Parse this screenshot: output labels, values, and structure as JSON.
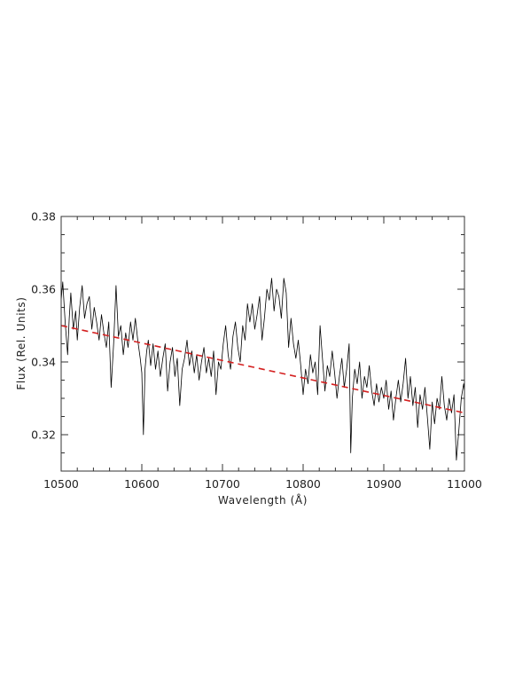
{
  "chart_data": {
    "type": "line",
    "title": "",
    "xlabel": "Wavelength (Å)",
    "ylabel": "Flux (Rel. Units)",
    "xlim": [
      10500,
      11000
    ],
    "ylim": [
      0.31,
      0.38
    ],
    "x_ticks": [
      10500,
      10600,
      10700,
      10800,
      10900,
      11000
    ],
    "x_tick_labels": [
      "10500",
      "10600",
      "10700",
      "10800",
      "10900",
      "11000"
    ],
    "y_ticks": [
      0.32,
      0.34,
      0.36,
      0.38
    ],
    "y_tick_labels": [
      "0.32",
      "0.34",
      "0.36",
      "0.38"
    ],
    "grid": false,
    "legend": "none",
    "series": [
      {
        "style": "solid",
        "color": "#000000",
        "x": [
          10500,
          10502,
          10505,
          10508,
          10510,
          10512,
          10515,
          10518,
          10520,
          10523,
          10526,
          10529,
          10532,
          10535,
          10538,
          10541,
          10544,
          10547,
          10550,
          10553,
          10556,
          10559,
          10562,
          10565,
          10568,
          10571,
          10574,
          10577,
          10580,
          10583,
          10586,
          10589,
          10592,
          10595,
          10598,
          10600,
          10602,
          10604,
          10606,
          10608,
          10611,
          10614,
          10617,
          10620,
          10623,
          10626,
          10629,
          10632,
          10635,
          10638,
          10641,
          10644,
          10647,
          10650,
          10653,
          10656,
          10659,
          10662,
          10665,
          10668,
          10671,
          10674,
          10677,
          10680,
          10683,
          10686,
          10689,
          10692,
          10695,
          10698,
          10701,
          10704,
          10707,
          10710,
          10713,
          10716,
          10719,
          10722,
          10725,
          10728,
          10731,
          10734,
          10737,
          10740,
          10743,
          10746,
          10749,
          10752,
          10755,
          10758,
          10761,
          10764,
          10767,
          10770,
          10773,
          10776,
          10779,
          10782,
          10785,
          10788,
          10791,
          10794,
          10797,
          10800,
          10803,
          10806,
          10809,
          10812,
          10815,
          10818,
          10821,
          10824,
          10827,
          10830,
          10833,
          10836,
          10839,
          10842,
          10845,
          10848,
          10851,
          10854,
          10857,
          10859,
          10861,
          10864,
          10867,
          10870,
          10873,
          10876,
          10879,
          10882,
          10885,
          10888,
          10891,
          10894,
          10897,
          10900,
          10903,
          10906,
          10909,
          10912,
          10915,
          10918,
          10921,
          10924,
          10927,
          10930,
          10933,
          10936,
          10939,
          10942,
          10945,
          10948,
          10951,
          10954,
          10957,
          10960,
          10963,
          10966,
          10969,
          10972,
          10975,
          10978,
          10981,
          10984,
          10987,
          10990,
          10993,
          10996,
          10999,
          11000
        ],
        "values": [
          0.357,
          0.362,
          0.351,
          0.342,
          0.352,
          0.359,
          0.349,
          0.354,
          0.346,
          0.355,
          0.361,
          0.352,
          0.356,
          0.358,
          0.349,
          0.355,
          0.351,
          0.346,
          0.353,
          0.348,
          0.344,
          0.351,
          0.333,
          0.345,
          0.361,
          0.347,
          0.35,
          0.342,
          0.348,
          0.344,
          0.351,
          0.346,
          0.352,
          0.346,
          0.341,
          0.337,
          0.32,
          0.338,
          0.343,
          0.346,
          0.339,
          0.345,
          0.338,
          0.343,
          0.336,
          0.341,
          0.345,
          0.332,
          0.34,
          0.344,
          0.336,
          0.341,
          0.328,
          0.338,
          0.341,
          0.346,
          0.339,
          0.343,
          0.337,
          0.342,
          0.335,
          0.34,
          0.344,
          0.337,
          0.341,
          0.336,
          0.343,
          0.331,
          0.34,
          0.338,
          0.345,
          0.35,
          0.342,
          0.338,
          0.347,
          0.351,
          0.344,
          0.34,
          0.35,
          0.346,
          0.356,
          0.351,
          0.356,
          0.349,
          0.353,
          0.358,
          0.346,
          0.352,
          0.36,
          0.357,
          0.363,
          0.354,
          0.36,
          0.358,
          0.352,
          0.363,
          0.359,
          0.344,
          0.352,
          0.345,
          0.341,
          0.346,
          0.339,
          0.331,
          0.338,
          0.334,
          0.342,
          0.337,
          0.34,
          0.331,
          0.35,
          0.341,
          0.332,
          0.339,
          0.336,
          0.343,
          0.337,
          0.33,
          0.336,
          0.341,
          0.333,
          0.338,
          0.345,
          0.315,
          0.33,
          0.338,
          0.334,
          0.34,
          0.33,
          0.336,
          0.333,
          0.339,
          0.332,
          0.328,
          0.334,
          0.329,
          0.333,
          0.33,
          0.335,
          0.327,
          0.332,
          0.324,
          0.33,
          0.335,
          0.329,
          0.334,
          0.341,
          0.33,
          0.336,
          0.328,
          0.333,
          0.322,
          0.331,
          0.327,
          0.333,
          0.325,
          0.316,
          0.329,
          0.323,
          0.33,
          0.327,
          0.336,
          0.328,
          0.324,
          0.33,
          0.326,
          0.331,
          0.313,
          0.321,
          0.33,
          0.334,
          0.332
        ]
      },
      {
        "style": "dashed",
        "color": "#d42020",
        "x": [
          10500,
          11000
        ],
        "values": [
          0.35,
          0.326
        ]
      }
    ]
  }
}
